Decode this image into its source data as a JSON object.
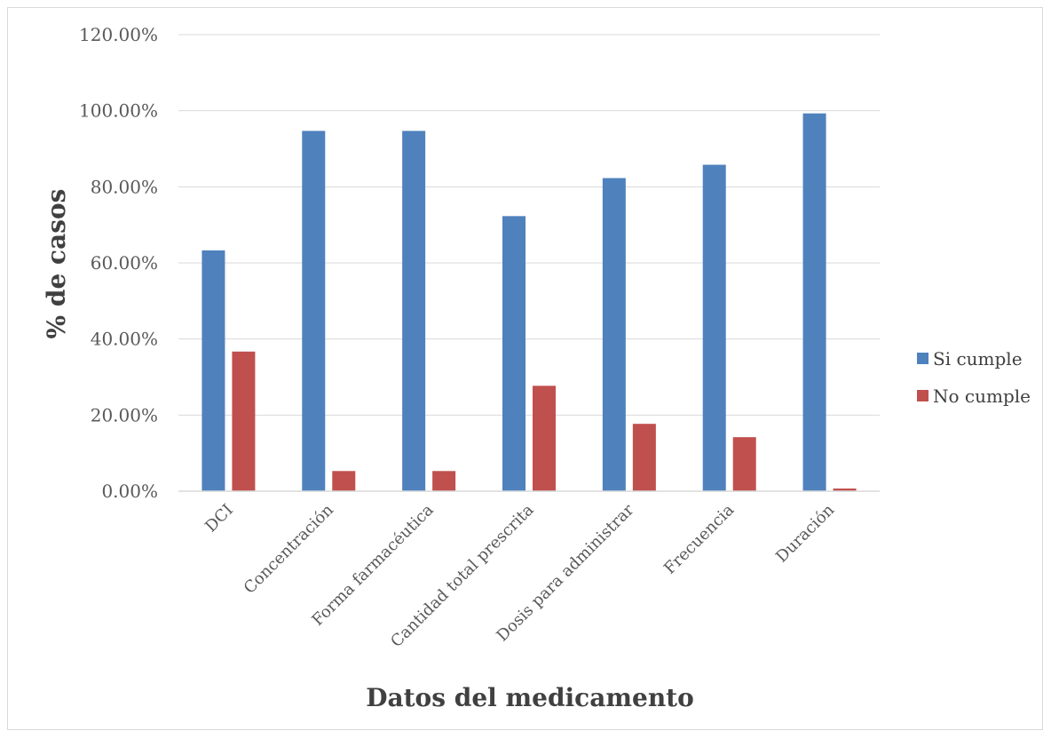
{
  "chart_data": {
    "type": "bar",
    "categories": [
      "DCI",
      "Concentración",
      "Forma farmacéutica",
      "Cantidad total prescrita",
      "Dosis para administrar",
      "Frecuencia",
      "Duración"
    ],
    "series": [
      {
        "name": "Si cumple",
        "color": "#4f81bd",
        "values": [
          63.3,
          94.7,
          94.7,
          72.3,
          82.3,
          85.8,
          99.3
        ]
      },
      {
        "name": "No cumple",
        "color": "#c0504d",
        "values": [
          36.7,
          5.3,
          5.3,
          27.7,
          17.7,
          14.2,
          0.7
        ]
      }
    ],
    "yticks": [
      "0.00%",
      "20.00%",
      "40.00%",
      "60.00%",
      "80.00%",
      "100.00%",
      "120.00%"
    ],
    "ylim": [
      0,
      120
    ],
    "xlabel": "Datos del medicamento",
    "ylabel": "% de casos",
    "grid": true,
    "gridColor": "#d9d9d9",
    "legend_position": "right"
  }
}
